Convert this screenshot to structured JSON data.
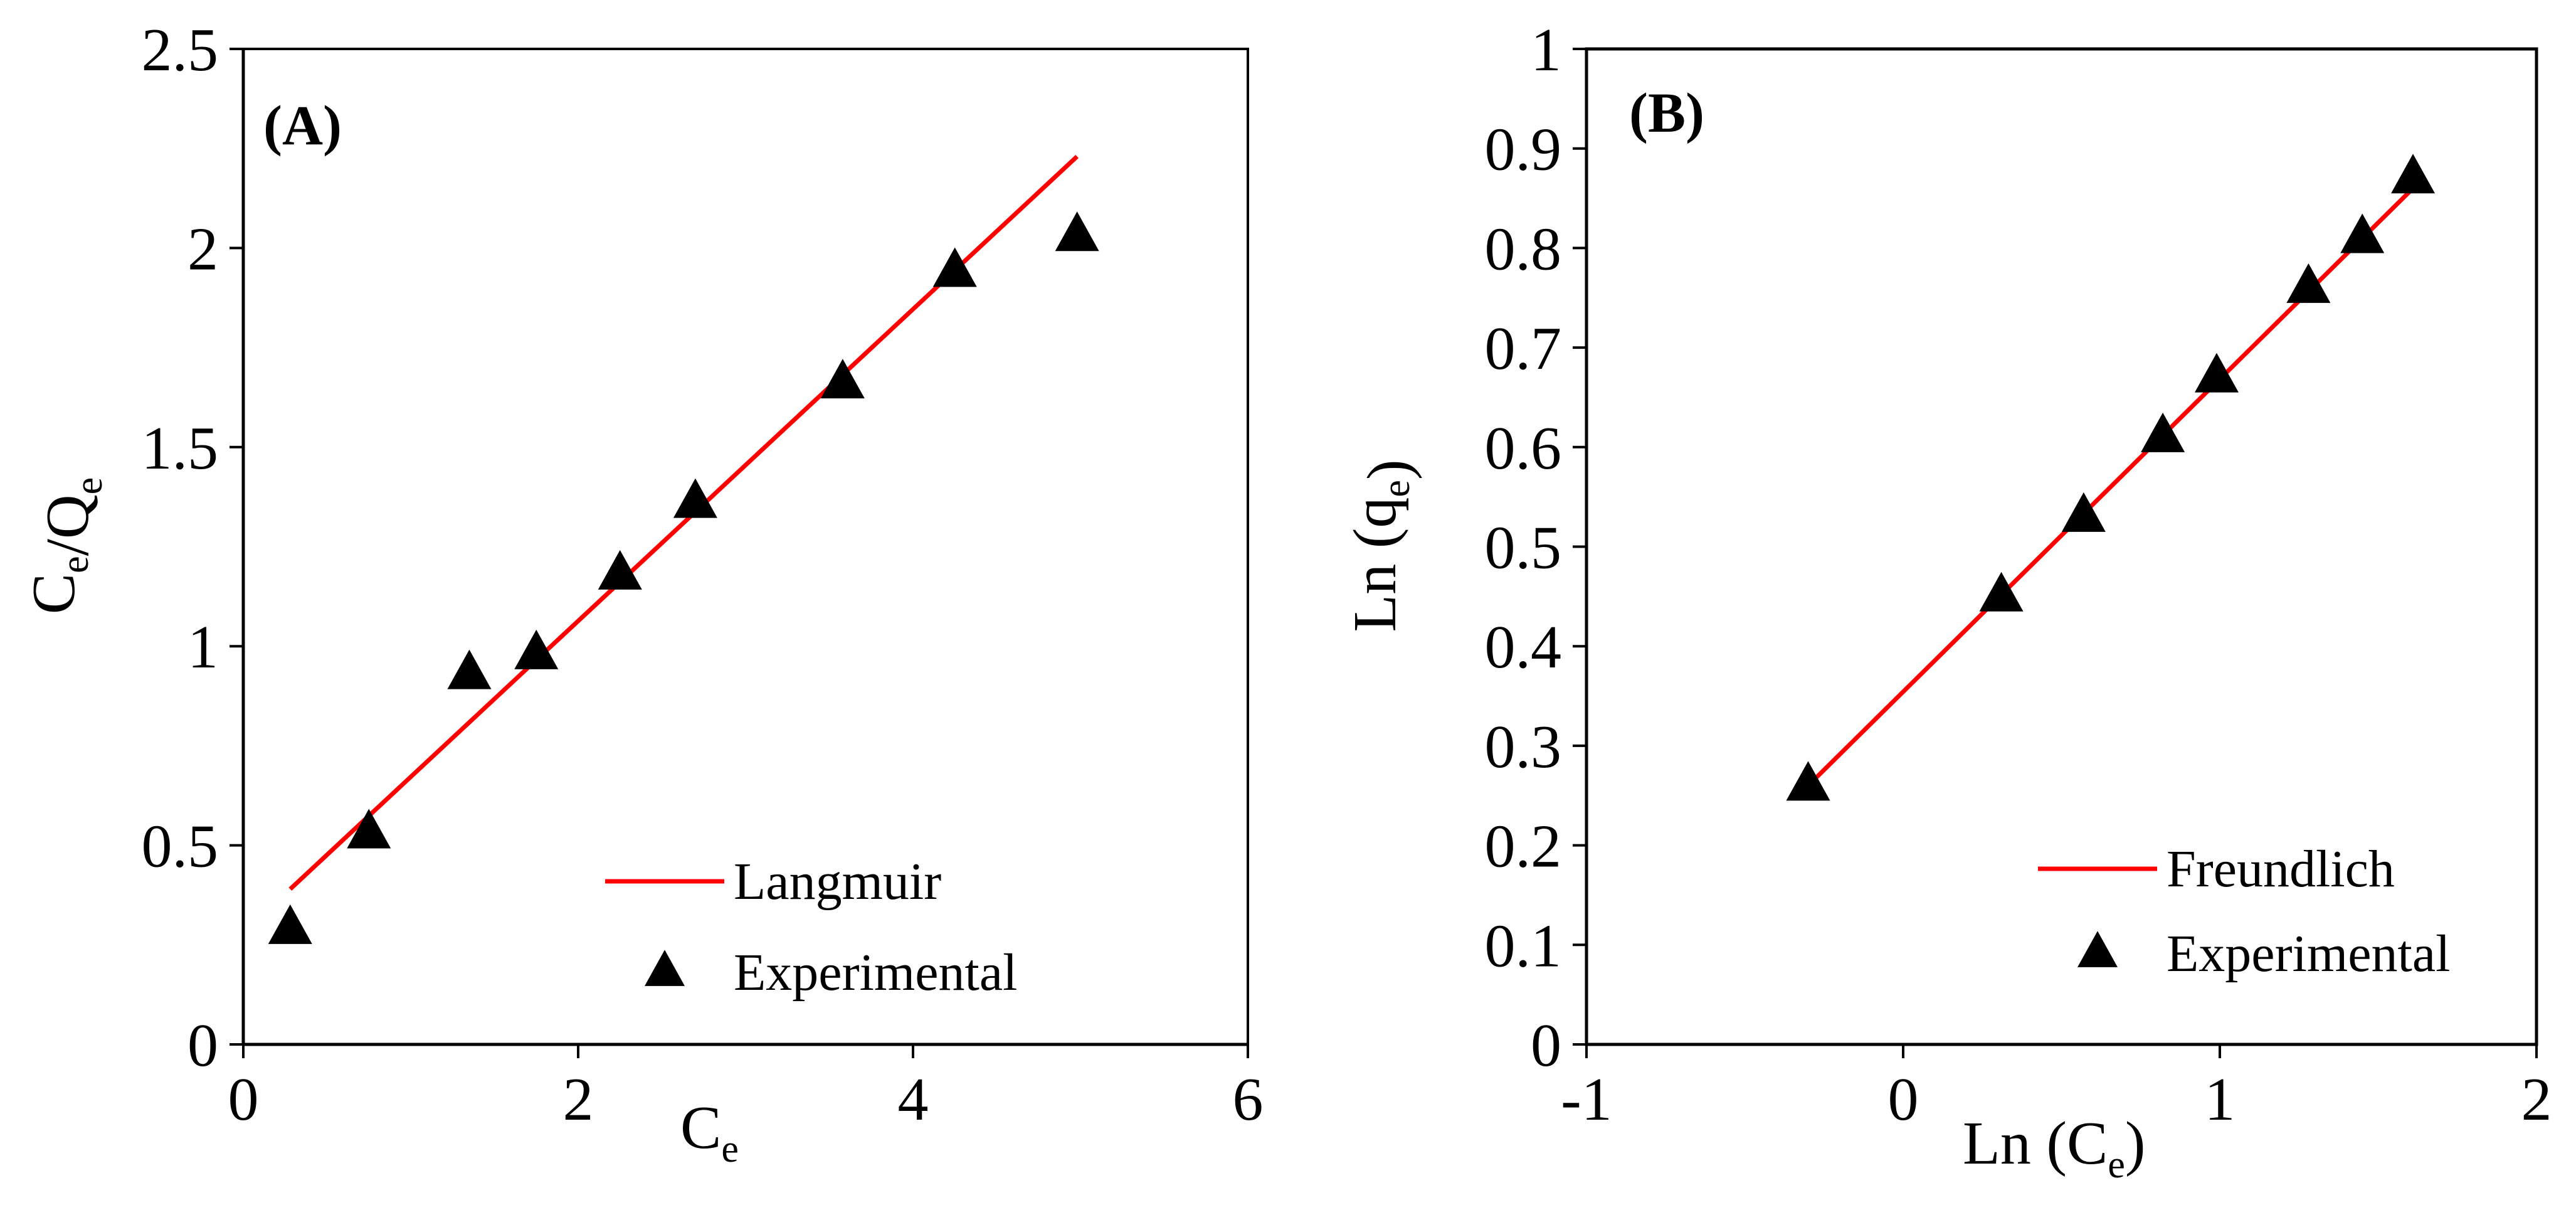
{
  "chart_data": [
    {
      "type": "scatter",
      "panel_label": "(A)",
      "xlabel": "C",
      "xlabel_sub": "e",
      "ylabel_parts": [
        {
          "text": "C",
          "sub": "e"
        },
        {
          "text": "/Q",
          "sub": "e"
        }
      ],
      "xlim": [
        0,
        6
      ],
      "ylim": [
        0,
        2.5
      ],
      "xticks": [
        0,
        2,
        4,
        6
      ],
      "xtick_labels": [
        "0",
        "2",
        "4",
        "6"
      ],
      "yticks": [
        0,
        0.5,
        1,
        1.5,
        2,
        2.5
      ],
      "ytick_labels": [
        "0",
        "0.5",
        "1",
        "1.5",
        "2",
        "2.5"
      ],
      "grid": false,
      "legend_position": "bottom-right",
      "series": [
        {
          "name": "Langmuir",
          "kind": "line",
          "color": "#ff0000",
          "x": [
            0.28,
            4.98
          ],
          "y": [
            0.39,
            2.23
          ]
        },
        {
          "name": "Experimental",
          "kind": "marker",
          "marker": "triangle",
          "color": "#000000",
          "x": [
            0.28,
            0.75,
            1.35,
            1.75,
            2.25,
            2.7,
            3.58,
            4.25,
            4.98
          ],
          "y": [
            0.29,
            0.53,
            0.93,
            0.98,
            1.18,
            1.36,
            1.66,
            1.94,
            2.03
          ]
        }
      ]
    },
    {
      "type": "scatter",
      "panel_label": "(B)",
      "xlabel": "Ln (C",
      "xlabel_sub": "e",
      "xlabel_end": ")",
      "ylabel_parts": [
        {
          "text": "Ln (q",
          "sub": "e"
        },
        {
          "text": ")",
          "sub": ""
        }
      ],
      "xlim": [
        -1,
        2
      ],
      "ylim": [
        0,
        1
      ],
      "xticks": [
        -1,
        0,
        1,
        2
      ],
      "xtick_labels": [
        "-1",
        "0",
        "1",
        "2"
      ],
      "yticks": [
        0,
        0.1,
        0.2,
        0.3,
        0.4,
        0.5,
        0.6,
        0.7,
        0.8,
        0.9,
        1
      ],
      "ytick_labels": [
        "0",
        "0.1",
        "0.2",
        "0.3",
        "0.4",
        "0.5",
        "0.6",
        "0.7",
        "0.8",
        "0.9",
        "1"
      ],
      "grid": false,
      "legend_position": "bottom-right",
      "series": [
        {
          "name": "Freundlich",
          "kind": "line",
          "color": "#ff0000",
          "x": [
            -0.3,
            1.61
          ],
          "y": [
            0.26,
            0.86
          ]
        },
        {
          "name": "Experimental",
          "kind": "marker",
          "marker": "triangle",
          "color": "#000000",
          "x": [
            -0.3,
            0.31,
            0.57,
            0.82,
            0.99,
            1.28,
            1.45,
            1.61
          ],
          "y": [
            0.26,
            0.45,
            0.53,
            0.61,
            0.67,
            0.76,
            0.81,
            0.87
          ]
        }
      ]
    }
  ]
}
